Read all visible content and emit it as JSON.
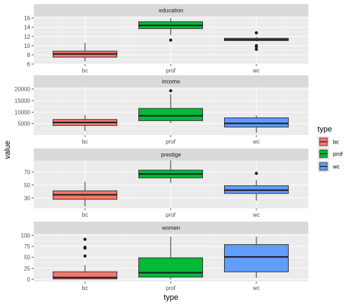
{
  "colors": {
    "panel_bg": "#EBEBEB",
    "strip_bg": "#D9D9D9",
    "grid_major": "#FFFFFF",
    "tick_text": "#4D4D4D",
    "bc": "#F8766D",
    "prof": "#00BA38",
    "wc": "#619CFF",
    "outline": "#333333"
  },
  "chart_data": {
    "type": "boxplot",
    "xlabel": "type",
    "ylabel": "value",
    "categories": [
      "bc",
      "prof",
      "wc"
    ],
    "legend": {
      "title": "type",
      "position": "right",
      "entries": [
        "bc",
        "prof",
        "wc"
      ]
    },
    "facets": [
      {
        "name": "education",
        "ylim": [
          6,
          16.4
        ],
        "yticks": [
          6,
          8,
          10,
          12,
          14,
          16
        ],
        "yticklabels": [
          "6",
          "8",
          "10",
          "12",
          "14",
          "16"
        ],
        "boxes": [
          {
            "category": "bc",
            "lower_whisker": 6.6,
            "q1": 7.5,
            "median": 8.2,
            "q3": 8.8,
            "upper_whisker": 10.6,
            "outliers": []
          },
          {
            "category": "prof",
            "lower_whisker": 12.3,
            "q1": 13.7,
            "median": 14.4,
            "q3": 15.2,
            "upper_whisker": 16.0,
            "outliers": [
              11.2
            ]
          },
          {
            "category": "wc",
            "lower_whisker": 10.9,
            "q1": 11.1,
            "median": 11.3,
            "q3": 11.6,
            "upper_whisker": 11.9,
            "outliers": [
              12.8,
              10.0,
              9.8,
              9.2
            ]
          }
        ]
      },
      {
        "name": "income",
        "ylim": [
          0,
          20800
        ],
        "yticks": [
          5000,
          10000,
          15000,
          20000
        ],
        "yticklabels": [
          "5000",
          "10000",
          "15000",
          "20000"
        ],
        "boxes": [
          {
            "category": "bc",
            "lower_whisker": 1800,
            "q1": 4200,
            "median": 5500,
            "q3": 6800,
            "upper_whisker": 8800,
            "outliers": []
          },
          {
            "category": "prof",
            "lower_whisker": 5100,
            "q1": 6300,
            "median": 8400,
            "q3": 11600,
            "upper_whisker": 17800,
            "outliers": [
              19300
            ]
          },
          {
            "category": "wc",
            "lower_whisker": 1000,
            "q1": 3500,
            "median": 5100,
            "q3": 7500,
            "upper_whisker": 8600,
            "outliers": []
          }
        ]
      },
      {
        "name": "prestige",
        "ylim": [
          14,
          88
        ],
        "yticks": [
          30,
          50,
          70
        ],
        "yticklabels": [
          "30",
          "50",
          "70"
        ],
        "boxes": [
          {
            "category": "bc",
            "lower_whisker": 17,
            "q1": 28,
            "median": 35,
            "q3": 41,
            "upper_whisker": 55,
            "outliers": []
          },
          {
            "category": "prof",
            "lower_whisker": 53,
            "q1": 61,
            "median": 67,
            "q3": 73,
            "upper_whisker": 88,
            "outliers": []
          },
          {
            "category": "wc",
            "lower_whisker": 26,
            "q1": 37,
            "median": 42,
            "q3": 49,
            "upper_whisker": 58,
            "outliers": [
              68
            ]
          }
        ]
      },
      {
        "name": "women",
        "ylim": [
          -5,
          104
        ],
        "yticks": [
          0,
          25,
          50,
          75,
          100
        ],
        "yticklabels": [
          "0",
          "25",
          "50",
          "75",
          "100"
        ],
        "boxes": [
          {
            "category": "bc",
            "lower_whisker": 0,
            "q1": 1,
            "median": 4,
            "q3": 17,
            "upper_whisker": 32,
            "outliers": [
              91,
              73,
              71,
              53
            ]
          },
          {
            "category": "prof",
            "lower_whisker": 0,
            "q1": 5,
            "median": 15,
            "q3": 49,
            "upper_whisker": 97,
            "outliers": []
          },
          {
            "category": "wc",
            "lower_whisker": 3,
            "q1": 17,
            "median": 51,
            "q3": 79,
            "upper_whisker": 97,
            "outliers": []
          }
        ]
      }
    ]
  }
}
